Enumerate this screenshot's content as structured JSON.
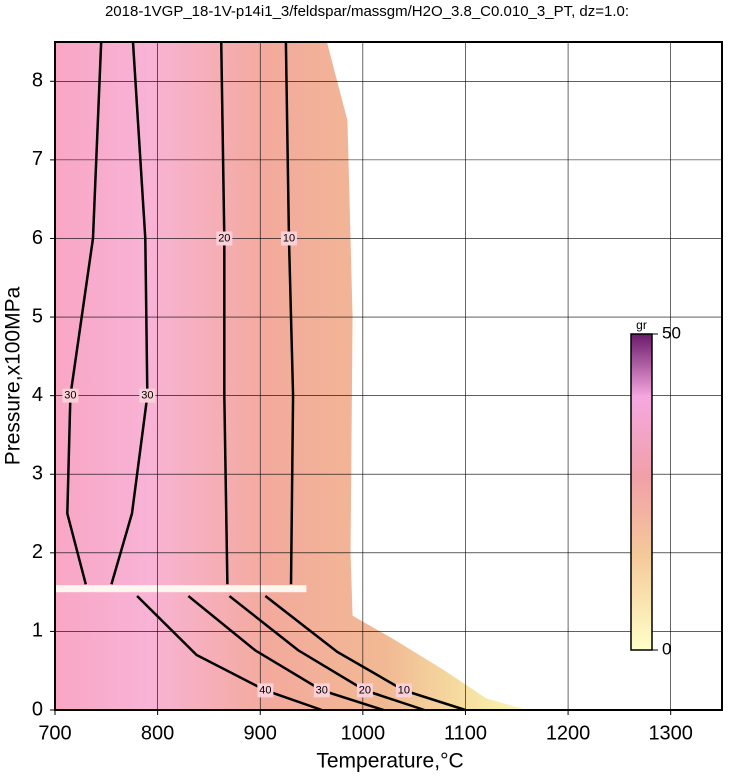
{
  "chart_data": {
    "type": "contour",
    "title": "2018-1VGP_18-1V-p14i1_3/feldspar/massgm/H2O_3.8_C0.010_3_PT, dz=1.0:",
    "x_label": "Temperature,°C",
    "y_label": "Pressure,x100MPa",
    "xlim": [
      700,
      1350
    ],
    "ylim": [
      0,
      8.5
    ],
    "xticks": [
      700,
      800,
      900,
      1000,
      1100,
      1200,
      1300
    ],
    "yticks": [
      0,
      1,
      2,
      3,
      4,
      5,
      6,
      7,
      8
    ],
    "grid": true,
    "region": {
      "x": [
        700,
        700,
        965,
        985,
        990,
        988,
        990,
        1030,
        1080,
        1120,
        1160
      ],
      "y": [
        0,
        8.5,
        8.5,
        7.5,
        5,
        2,
        1.2,
        0.9,
        0.5,
        0.15,
        0
      ]
    },
    "contours": [
      {
        "level": 10,
        "x": [
          930,
          932,
          928,
          925
        ],
        "y": [
          1.6,
          4,
          6,
          8.5
        ]
      },
      {
        "level": 20,
        "x": [
          868,
          865,
          865,
          862
        ],
        "y": [
          1.6,
          4,
          6,
          8.5
        ]
      },
      {
        "level": 30,
        "x": [
          755,
          775,
          790,
          788,
          776
        ],
        "y": [
          1.6,
          2.5,
          4,
          6,
          8.5
        ]
      },
      {
        "level": 30,
        "x": [
          730,
          712,
          715,
          737,
          745
        ],
        "y": [
          1.6,
          2.5,
          4,
          6,
          8.5
        ]
      },
      {
        "level": 10,
        "x": [
          905,
          975,
          1040,
          1100
        ],
        "y": [
          1.45,
          0.74,
          0.25,
          0
        ]
      },
      {
        "level": 20,
        "x": [
          870,
          937,
          1002,
          1060
        ],
        "y": [
          1.45,
          0.76,
          0.25,
          0
        ]
      },
      {
        "level": 30,
        "x": [
          830,
          895,
          960,
          1020
        ],
        "y": [
          1.45,
          0.76,
          0.25,
          0
        ]
      },
      {
        "level": 40,
        "x": [
          780,
          838,
          905,
          960
        ],
        "y": [
          1.45,
          0.7,
          0.25,
          0
        ]
      }
    ],
    "colorbar": {
      "label": "gr",
      "lim": [
        0,
        50
      ],
      "ticks": [
        0,
        50
      ]
    }
  }
}
